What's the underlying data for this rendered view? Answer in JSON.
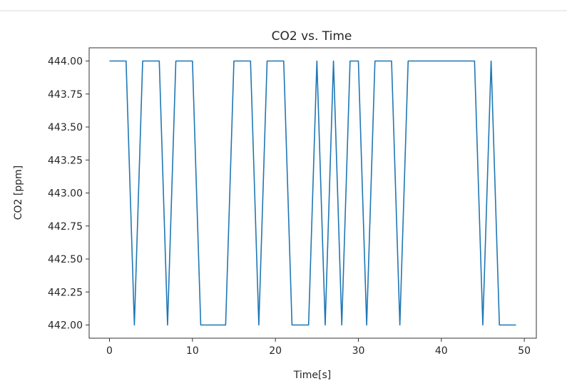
{
  "chart_data": {
    "type": "line",
    "title": "CO2 vs. Time",
    "xlabel": "Time[s]",
    "ylabel": "CO2 [ppm]",
    "xlim": [
      -2.45,
      51.45
    ],
    "ylim": [
      441.9,
      444.1
    ],
    "xticks": [
      0,
      10,
      20,
      30,
      40,
      50
    ],
    "xtick_labels": [
      "0",
      "10",
      "20",
      "30",
      "40",
      "50"
    ],
    "yticks": [
      442.0,
      442.25,
      442.5,
      442.75,
      443.0,
      443.25,
      443.5,
      443.75,
      444.0
    ],
    "ytick_labels": [
      "442.00",
      "442.25",
      "442.50",
      "442.75",
      "443.00",
      "443.25",
      "443.50",
      "443.75",
      "444.00"
    ],
    "grid": false,
    "series": [
      {
        "color": "#1f77b4",
        "x": [
          0,
          1,
          2,
          3,
          4,
          5,
          6,
          7,
          8,
          9,
          10,
          11,
          12,
          13,
          14,
          15,
          16,
          17,
          18,
          19,
          20,
          21,
          22,
          23,
          24,
          25,
          26,
          27,
          28,
          29,
          30,
          31,
          32,
          33,
          34,
          35,
          36,
          37,
          38,
          39,
          40,
          41,
          42,
          43,
          44,
          45,
          46,
          47,
          48,
          49
        ],
        "y": [
          444,
          444,
          444,
          442,
          444,
          444,
          444,
          442,
          444,
          444,
          444,
          442,
          442,
          442,
          442,
          444,
          444,
          444,
          442,
          444,
          444,
          444,
          442,
          442,
          442,
          444,
          442,
          444,
          442,
          444,
          444,
          442,
          444,
          444,
          444,
          442,
          444,
          444,
          444,
          444,
          444,
          444,
          444,
          444,
          444,
          442,
          444,
          442,
          442,
          442
        ]
      }
    ]
  }
}
